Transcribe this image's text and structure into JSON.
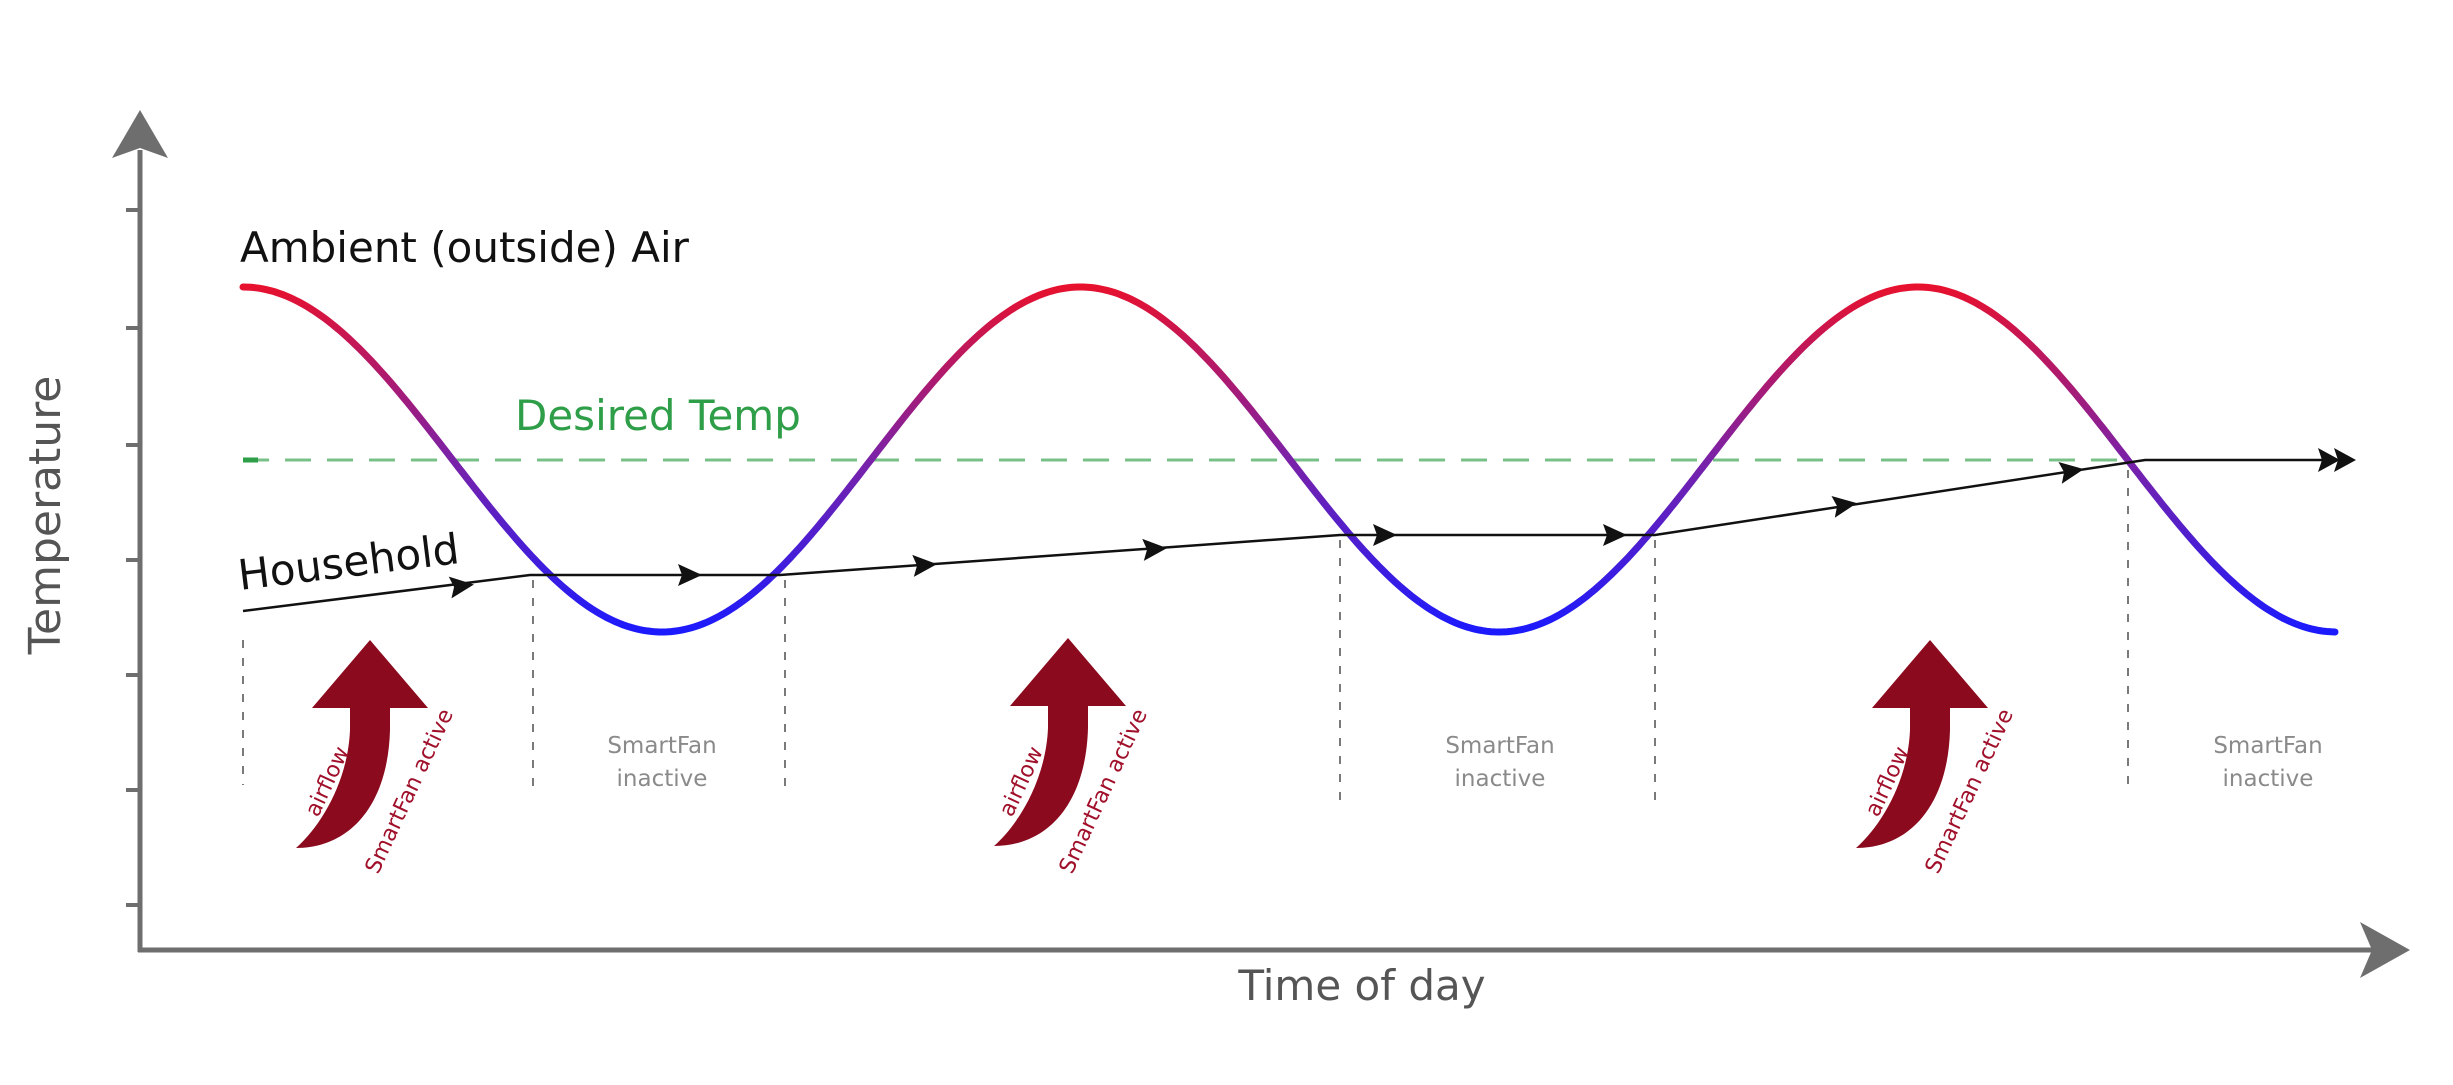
{
  "axes": {
    "y_label": "Temperature",
    "x_label": "Time of day"
  },
  "labels": {
    "ambient": "Ambient (outside) Air",
    "desired": "Desired Temp",
    "household": "Household"
  },
  "phases": [
    {
      "state": "active",
      "airflow": "airflow",
      "status": "SmartFan active"
    },
    {
      "state": "inactive",
      "line1": "SmartFan",
      "line2": "inactive"
    },
    {
      "state": "active",
      "airflow": "airflow",
      "status": "SmartFan active"
    },
    {
      "state": "inactive",
      "line1": "SmartFan",
      "line2": "inactive"
    },
    {
      "state": "active",
      "airflow": "airflow",
      "status": "SmartFan active"
    },
    {
      "state": "inactive",
      "line1": "SmartFan",
      "line2": "inactive"
    }
  ],
  "colors": {
    "hot": "#e8112d",
    "cold": "#1a1aff",
    "desired": "#2e9e48",
    "airflow": "#8b0a1e",
    "axis": "#6e6e6e",
    "household": "#111111",
    "inactive_text": "#8a8a8a"
  }
}
